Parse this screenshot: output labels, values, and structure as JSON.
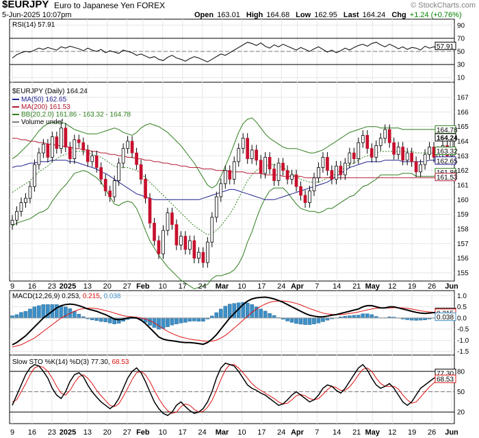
{
  "header": {
    "symbol": "$EURJPY",
    "name": "Euro to Japanese Yen FOREX",
    "datetime": "5-Jun-2025 10:07pm",
    "open_label": "Open",
    "open": "163.01",
    "high_label": "High",
    "high": "164.68",
    "low_label": "Low",
    "low": "162.95",
    "last_label": "Last",
    "last": "164.24",
    "chg_label": "Chg",
    "chg": "+1.24 (+0.76%)",
    "watermark": "© StockCharts.com"
  },
  "colors": {
    "up": "#ffffff",
    "down": "#c8102e",
    "ma50": "#1f1f8f",
    "ma200": "#b0192f",
    "bb": "#2e7d1c",
    "hist": "#3d8fc6",
    "signal": "#e01010"
  },
  "x_ticks": [
    "9",
    "16",
    "23",
    "2025",
    "13",
    "20",
    "27",
    "Feb",
    "10",
    "17",
    "24",
    "Mar",
    "10",
    "17",
    "24",
    "Apr",
    "7",
    "14",
    "21",
    "May",
    "12",
    "19",
    "26",
    "Jun"
  ],
  "rsi": {
    "title": "RSI(14) 57.91",
    "ticks": [
      "90",
      "70",
      "50",
      "30",
      "10"
    ],
    "last_label": "57.91",
    "values": [
      40,
      45,
      48,
      50,
      49,
      52,
      55,
      53,
      56,
      54,
      52,
      57,
      55,
      58,
      56,
      54,
      51,
      55,
      52,
      50,
      53,
      48,
      51,
      49,
      47,
      52,
      50,
      48,
      44,
      46,
      43,
      40,
      42,
      38,
      36,
      41,
      44,
      40,
      38,
      35,
      39,
      42,
      40,
      37,
      34,
      38,
      42,
      46,
      44,
      48,
      52,
      56,
      60,
      64,
      62,
      59,
      63,
      58,
      55,
      60,
      57,
      61,
      58,
      55,
      52,
      56,
      53,
      50,
      54,
      57,
      53,
      49,
      52,
      48,
      51,
      55,
      52,
      56,
      59,
      61,
      58,
      62,
      64,
      60,
      57,
      61,
      58,
      54,
      57,
      53,
      56,
      55,
      52,
      58,
      55,
      57,
      53,
      56,
      58,
      57.91
    ]
  },
  "price": {
    "title": "$EURJPY (Daily) 164.24",
    "ticks": [
      "167",
      "166",
      "165",
      "164",
      "163",
      "162",
      "161",
      "160",
      "159",
      "158",
      "157",
      "156",
      "155"
    ],
    "legend": [
      {
        "label": "MA(50) 162.65",
        "color": "#1f1f8f"
      },
      {
        "label": "MA(200) 161.53",
        "color": "#b0192f"
      },
      {
        "label": "BB(20,2.0) 161.86 - 163.32 - 164.78",
        "color": "#2e7d1c"
      },
      {
        "label": "Volume undef",
        "color": "#7f7f7f"
      }
    ],
    "tags": [
      {
        "label": "164.78",
        "value": 164.78,
        "color": "#2e7d1c"
      },
      {
        "label": "164.24",
        "value": 164.24,
        "color": "#000000",
        "bold": true
      },
      {
        "label": "163.32",
        "value": 163.32,
        "color": "#2e7d1c"
      },
      {
        "label": "162.65",
        "value": 162.65,
        "color": "#1f1f8f"
      },
      {
        "label": "161.86",
        "value": 161.86,
        "color": "#2e7d1c"
      },
      {
        "label": "161.53",
        "value": 161.53,
        "color": "#b0192f"
      }
    ],
    "close": [
      158.6,
      159.2,
      159.8,
      160.1,
      160.9,
      162.4,
      163.2,
      163.8,
      162.9,
      164.3,
      163.5,
      164.9,
      163.6,
      162.8,
      164.1,
      163.9,
      163.4,
      162.6,
      163.0,
      162.2,
      161.4,
      160.6,
      160.2,
      161.3,
      162.5,
      163.5,
      164.0,
      163.2,
      162.4,
      161.4,
      160.1,
      158.4,
      157.2,
      156.3,
      157.9,
      159.1,
      158.3,
      156.9,
      157.5,
      156.6,
      157.2,
      156.0,
      156.4,
      155.7,
      157.1,
      158.8,
      160.2,
      161.1,
      162.0,
      161.4,
      162.6,
      163.5,
      164.2,
      162.8,
      163.4,
      162.7,
      161.8,
      162.9,
      162.1,
      161.3,
      162.5,
      162.0,
      161.4,
      161.7,
      160.9,
      160.3,
      159.8,
      160.6,
      161.5,
      162.2,
      162.9,
      162.0,
      161.4,
      162.3,
      161.7,
      162.5,
      163.2,
      162.8,
      163.9,
      164.4,
      163.5,
      162.9,
      163.7,
      164.2,
      164.8,
      163.9,
      163.1,
      163.6,
      162.7,
      163.2,
      162.6,
      161.9,
      162.4,
      163.1,
      163.6,
      162.9,
      163.3,
      163.7,
      163.0,
      164.24
    ],
    "open": [
      158.3,
      158.6,
      159.2,
      159.8,
      160.1,
      160.9,
      162.4,
      163.2,
      163.8,
      162.9,
      164.3,
      163.5,
      164.9,
      163.6,
      162.8,
      164.1,
      163.9,
      163.4,
      162.6,
      163.0,
      162.2,
      161.4,
      160.6,
      160.2,
      161.3,
      162.5,
      163.5,
      164.0,
      163.2,
      162.4,
      161.4,
      160.1,
      158.4,
      157.2,
      156.3,
      157.9,
      159.1,
      158.3,
      156.9,
      157.5,
      156.6,
      157.2,
      156.0,
      156.4,
      155.7,
      157.1,
      158.8,
      160.2,
      161.1,
      162.0,
      161.4,
      162.6,
      163.5,
      164.2,
      162.8,
      163.4,
      162.7,
      161.8,
      162.9,
      162.1,
      161.3,
      162.5,
      162.0,
      161.4,
      161.7,
      160.9,
      160.3,
      159.8,
      160.6,
      161.5,
      162.2,
      162.9,
      162.0,
      161.4,
      162.3,
      161.7,
      162.5,
      163.2,
      162.8,
      163.9,
      164.4,
      163.5,
      162.9,
      163.7,
      164.2,
      164.8,
      163.9,
      163.1,
      163.6,
      162.7,
      163.2,
      162.6,
      161.9,
      162.4,
      163.1,
      163.6,
      162.9,
      163.3,
      163.7,
      163.01
    ],
    "ma50": [
      162.2,
      162.3,
      162.3,
      162.4,
      162.5,
      162.5,
      162.6,
      162.6,
      162.6,
      162.7,
      162.7,
      162.7,
      162.7,
      162.6,
      162.6,
      162.5,
      162.4,
      162.3,
      162.2,
      162.1,
      161.9,
      161.8,
      161.6,
      161.4,
      161.2,
      161.0,
      160.8,
      160.6,
      160.4,
      160.3,
      160.2,
      160.1,
      160.0,
      160.0,
      160.0,
      160.0,
      160.0,
      160.0,
      160.0,
      160.0,
      160.0,
      160.0,
      160.0,
      160.1,
      160.2,
      160.3,
      160.4,
      160.5,
      160.6,
      160.7,
      160.7,
      160.6,
      160.5,
      160.4,
      160.3,
      160.2,
      160.1,
      160.0,
      160.0,
      160.0,
      160.1,
      160.2,
      160.3,
      160.4,
      160.5,
      160.6,
      160.7,
      160.8,
      160.9,
      161.0,
      161.1,
      161.2,
      161.4,
      161.6,
      161.8,
      162.0,
      162.2,
      162.3,
      162.4,
      162.5,
      162.6,
      162.6,
      162.6,
      162.6,
      162.7,
      162.7,
      162.7,
      162.7,
      162.6,
      162.6,
      162.6,
      162.6,
      162.6,
      162.6,
      162.7,
      162.7,
      162.7,
      162.7,
      162.65,
      162.65
    ],
    "ma200": [
      164.2,
      164.2,
      164.1,
      164.1,
      164.0,
      164.0,
      163.9,
      163.9,
      163.8,
      163.8,
      163.7,
      163.7,
      163.6,
      163.6,
      163.5,
      163.5,
      163.4,
      163.4,
      163.3,
      163.3,
      163.2,
      163.2,
      163.1,
      163.1,
      163.0,
      163.0,
      162.9,
      162.9,
      162.8,
      162.8,
      162.7,
      162.7,
      162.6,
      162.6,
      162.5,
      162.5,
      162.4,
      162.4,
      162.3,
      162.3,
      162.2,
      162.2,
      162.2,
      162.1,
      162.1,
      162.1,
      162.0,
      162.0,
      162.0,
      161.9,
      161.9,
      161.9,
      161.9,
      161.8,
      161.8,
      161.8,
      161.8,
      161.7,
      161.7,
      161.7,
      161.7,
      161.6,
      161.6,
      161.6,
      161.6,
      161.6,
      161.5,
      161.5,
      161.5,
      161.5,
      161.5,
      161.5,
      161.5,
      161.5,
      161.5,
      161.5,
      161.5,
      161.5,
      161.5,
      161.5,
      161.5,
      161.5,
      161.5,
      161.5,
      161.5,
      161.5,
      161.5,
      161.5,
      161.5,
      161.5,
      161.5,
      161.5,
      161.5,
      161.5,
      161.5,
      161.5,
      161.5,
      161.5,
      161.53,
      161.53
    ],
    "bb_mid": [
      160.5,
      160.7,
      160.9,
      161.1,
      161.3,
      161.6,
      161.9,
      162.1,
      162.3,
      162.6,
      162.8,
      163.0,
      163.1,
      163.2,
      163.3,
      163.3,
      163.3,
      163.2,
      163.1,
      163.0,
      162.9,
      162.7,
      162.5,
      162.3,
      162.2,
      162.2,
      162.2,
      162.1,
      162.0,
      161.8,
      161.5,
      161.2,
      160.9,
      160.6,
      160.3,
      160.0,
      159.7,
      159.4,
      159.1,
      158.8,
      158.5,
      158.2,
      158.0,
      157.8,
      157.6,
      157.7,
      157.9,
      158.2,
      158.6,
      159.0,
      159.5,
      160.1,
      160.7,
      161.3,
      161.7,
      162.0,
      162.2,
      162.3,
      162.4,
      162.4,
      162.3,
      162.2,
      162.0,
      161.8,
      161.6,
      161.4,
      161.3,
      161.2,
      161.2,
      161.2,
      161.3,
      161.5,
      161.6,
      161.8,
      162.0,
      162.2,
      162.4,
      162.5,
      162.7,
      162.9,
      163.0,
      163.1,
      163.2,
      163.3,
      163.3,
      163.3,
      163.3,
      163.3,
      163.3,
      163.3,
      163.3,
      163.2,
      163.2,
      163.2,
      163.2,
      163.2,
      163.3,
      163.3,
      163.32,
      163.32
    ],
    "bb_up": [
      162.8,
      163.0,
      163.3,
      163.6,
      163.9,
      164.3,
      164.7,
      165.0,
      165.2,
      165.3,
      165.3,
      165.3,
      165.2,
      165.0,
      164.8,
      164.7,
      164.6,
      164.5,
      164.5,
      164.5,
      164.6,
      164.7,
      164.8,
      164.9,
      164.8,
      164.6,
      164.5,
      164.4,
      164.6,
      164.9,
      165.1,
      165.2,
      165.1,
      165.0,
      164.8,
      164.6,
      164.3,
      164.0,
      163.7,
      163.3,
      162.9,
      162.5,
      162.0,
      161.5,
      161.0,
      160.8,
      161.0,
      161.6,
      162.3,
      163.0,
      163.8,
      164.6,
      165.2,
      165.5,
      165.6,
      165.3,
      164.9,
      164.5,
      164.2,
      164.0,
      163.8,
      163.6,
      163.5,
      163.5,
      163.5,
      163.4,
      163.3,
      163.2,
      163.2,
      163.3,
      163.4,
      163.6,
      163.8,
      164.0,
      164.2,
      164.4,
      164.6,
      164.7,
      164.8,
      164.9,
      165.0,
      165.0,
      165.0,
      164.9,
      164.9,
      164.9,
      164.9,
      164.9,
      164.8,
      164.8,
      164.8,
      164.8,
      164.8,
      164.8,
      164.8,
      164.8,
      164.8,
      164.8,
      164.78,
      164.78
    ],
    "bb_lo": [
      158.2,
      158.4,
      158.5,
      158.6,
      158.7,
      158.9,
      159.1,
      159.2,
      159.4,
      159.9,
      160.3,
      160.7,
      161.0,
      161.4,
      161.8,
      161.9,
      162.0,
      161.9,
      161.7,
      161.5,
      161.2,
      160.7,
      160.2,
      159.7,
      159.6,
      159.8,
      159.9,
      159.8,
      159.4,
      158.7,
      157.9,
      157.2,
      156.7,
      156.2,
      155.8,
      155.4,
      155.1,
      154.8,
      154.5,
      154.3,
      154.1,
      153.9,
      154.0,
      154.1,
      154.2,
      154.6,
      154.8,
      154.8,
      154.9,
      155.0,
      155.2,
      155.6,
      156.2,
      157.1,
      157.8,
      158.7,
      159.5,
      160.1,
      160.6,
      160.8,
      160.8,
      160.8,
      160.5,
      160.1,
      159.7,
      159.4,
      159.3,
      159.2,
      159.2,
      159.1,
      159.2,
      159.4,
      159.4,
      159.6,
      159.8,
      160.0,
      160.2,
      160.3,
      160.6,
      160.9,
      161.0,
      161.2,
      161.4,
      161.7,
      161.7,
      161.7,
      161.7,
      161.7,
      161.8,
      161.8,
      161.8,
      161.6,
      161.6,
      161.6,
      161.6,
      161.6,
      161.8,
      161.8,
      161.86,
      161.86
    ]
  },
  "macd": {
    "title_prefix": "MACD(12,26,9)",
    "v1": "0.253",
    "v2": "0.215",
    "v3": "0.038",
    "ticks": [
      "1.0",
      "0.5",
      "0.0",
      "-0.5",
      "-1.0",
      "-1.5"
    ],
    "tags": [
      {
        "label": "0.253",
        "value": 0.253,
        "color": "#000000"
      },
      {
        "label": "0.215",
        "value": 0.215,
        "color": "#e01010"
      },
      {
        "label": "0.038",
        "value": 0.038,
        "color": "#3d8fc6"
      }
    ],
    "macd_line": [
      -1.2,
      -1.1,
      -0.95,
      -0.8,
      -0.6,
      -0.4,
      -0.2,
      0.0,
      0.15,
      0.3,
      0.45,
      0.55,
      0.6,
      0.62,
      0.6,
      0.55,
      0.48,
      0.4,
      0.35,
      0.3,
      0.22,
      0.15,
      0.05,
      -0.05,
      -0.08,
      -0.05,
      0.0,
      0.02,
      0.0,
      -0.1,
      -0.25,
      -0.45,
      -0.65,
      -0.85,
      -0.95,
      -1.0,
      -1.02,
      -1.05,
      -1.08,
      -1.1,
      -1.1,
      -1.12,
      -1.15,
      -1.18,
      -1.1,
      -0.95,
      -0.75,
      -0.5,
      -0.25,
      0.0,
      0.2,
      0.4,
      0.6,
      0.75,
      0.85,
      0.9,
      0.92,
      0.93,
      0.9,
      0.85,
      0.78,
      0.7,
      0.6,
      0.5,
      0.4,
      0.3,
      0.2,
      0.12,
      0.08,
      0.05,
      0.05,
      0.08,
      0.12,
      0.15,
      0.2,
      0.25,
      0.3,
      0.35,
      0.4,
      0.5,
      0.55,
      0.55,
      0.5,
      0.45,
      0.45,
      0.5,
      0.5,
      0.45,
      0.4,
      0.35,
      0.3,
      0.25,
      0.22,
      0.2,
      0.22,
      0.24,
      0.23,
      0.22,
      0.24,
      0.253
    ],
    "signal": [
      -1.3,
      -1.25,
      -1.2,
      -1.1,
      -1.0,
      -0.9,
      -0.75,
      -0.6,
      -0.45,
      -0.3,
      -0.15,
      0.0,
      0.1,
      0.2,
      0.3,
      0.38,
      0.42,
      0.44,
      0.44,
      0.42,
      0.38,
      0.33,
      0.28,
      0.22,
      0.16,
      0.1,
      0.07,
      0.05,
      0.03,
      0.0,
      -0.05,
      -0.12,
      -0.22,
      -0.35,
      -0.48,
      -0.6,
      -0.7,
      -0.78,
      -0.85,
      -0.9,
      -0.95,
      -0.98,
      -1.0,
      -1.03,
      -1.05,
      -1.04,
      -0.99,
      -0.9,
      -0.78,
      -0.62,
      -0.45,
      -0.28,
      -0.1,
      0.08,
      0.25,
      0.4,
      0.52,
      0.62,
      0.7,
      0.74,
      0.76,
      0.76,
      0.74,
      0.7,
      0.65,
      0.58,
      0.5,
      0.42,
      0.35,
      0.28,
      0.22,
      0.18,
      0.16,
      0.15,
      0.15,
      0.17,
      0.2,
      0.23,
      0.27,
      0.31,
      0.36,
      0.4,
      0.43,
      0.44,
      0.44,
      0.45,
      0.46,
      0.46,
      0.45,
      0.43,
      0.4,
      0.36,
      0.32,
      0.29,
      0.27,
      0.25,
      0.24,
      0.23,
      0.22,
      0.215
    ]
  },
  "sto": {
    "title_prefix": "Slow STO %K(14) %D(3)",
    "k_label": "77.30",
    "d_label": "68.53",
    "ticks": [
      "80",
      "50",
      "20"
    ],
    "tags": [
      {
        "label": "77.30",
        "value": 77.3,
        "color": "#000000"
      },
      {
        "label": "68.53",
        "value": 68.53,
        "color": "#e01010"
      }
    ],
    "k": [
      30,
      45,
      60,
      75,
      85,
      90,
      88,
      80,
      70,
      55,
      45,
      40,
      50,
      65,
      75,
      78,
      72,
      60,
      50,
      42,
      35,
      30,
      25,
      30,
      40,
      55,
      70,
      80,
      85,
      78,
      65,
      50,
      35,
      25,
      18,
      15,
      20,
      30,
      35,
      28,
      22,
      18,
      20,
      25,
      35,
      50,
      70,
      85,
      92,
      90,
      88,
      80,
      70,
      60,
      55,
      52,
      48,
      45,
      40,
      35,
      30,
      32,
      38,
      45,
      50,
      45,
      40,
      35,
      38,
      45,
      55,
      60,
      58,
      52,
      48,
      55,
      65,
      75,
      85,
      90,
      82,
      70,
      60,
      55,
      58,
      62,
      55,
      45,
      35,
      30,
      35,
      45,
      55,
      60,
      65,
      70,
      72,
      74,
      76,
      77.3
    ],
    "d": [
      35,
      38,
      50,
      62,
      75,
      85,
      88,
      86,
      80,
      70,
      58,
      48,
      45,
      52,
      63,
      72,
      75,
      70,
      62,
      52,
      44,
      37,
      30,
      28,
      32,
      43,
      55,
      68,
      78,
      80,
      75,
      65,
      52,
      40,
      30,
      22,
      18,
      20,
      28,
      32,
      30,
      24,
      20,
      21,
      27,
      37,
      52,
      68,
      82,
      90,
      90,
      85,
      78,
      70,
      62,
      56,
      52,
      48,
      44,
      40,
      35,
      32,
      33,
      38,
      44,
      46,
      44,
      40,
      38,
      40,
      46,
      53,
      58,
      56,
      52,
      52,
      57,
      65,
      75,
      83,
      85,
      80,
      70,
      62,
      58,
      58,
      58,
      54,
      45,
      38,
      33,
      35,
      42,
      50,
      57,
      63,
      68,
      70,
      72,
      68.53
    ]
  }
}
